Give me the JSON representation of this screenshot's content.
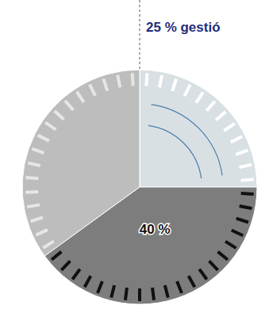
{
  "chart_data": {
    "type": "pie",
    "values": [
      25,
      40,
      35
    ],
    "value_labels": [
      "25 % gestió",
      "40 %",
      null
    ],
    "colors": [
      "#d9e0e4",
      "#7d7d7d",
      "#bdbdbd"
    ]
  }
}
